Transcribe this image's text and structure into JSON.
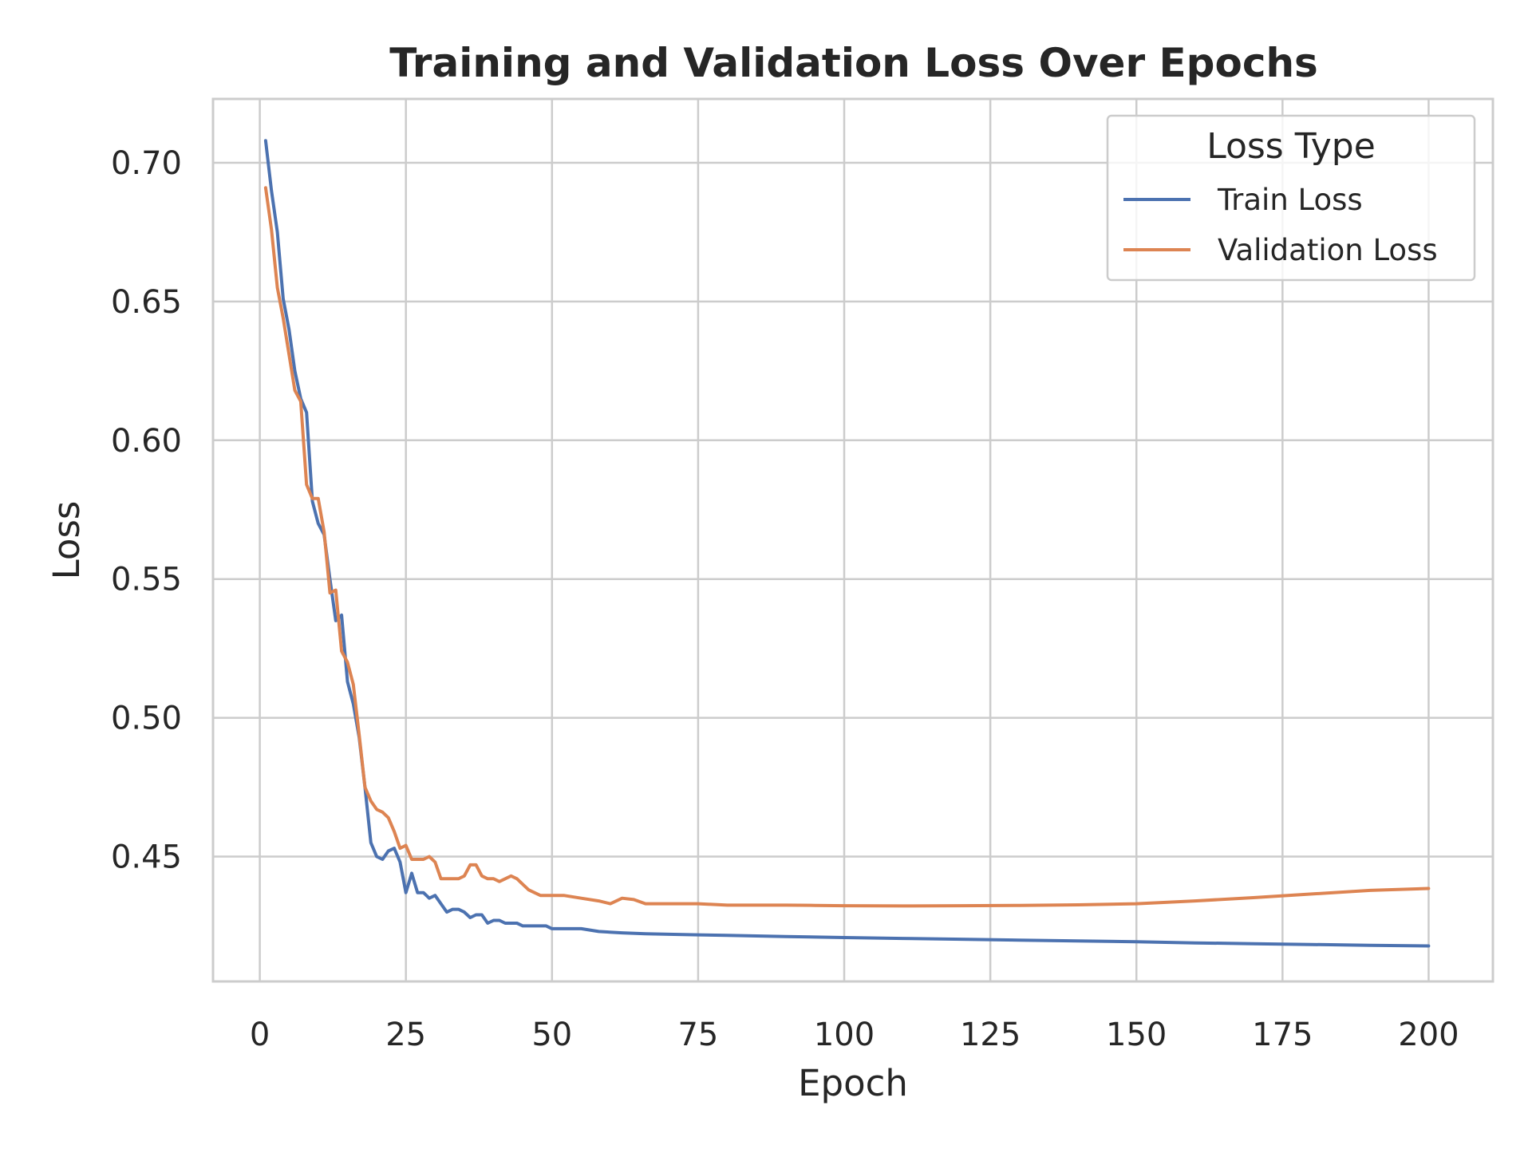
{
  "chart_data": {
    "type": "line",
    "title": "Training and Validation Loss Over Epochs",
    "xlabel": "Epoch",
    "ylabel": "Loss",
    "xlim": [
      -8,
      211
    ],
    "ylim": [
      0.405,
      0.723
    ],
    "xticks": [
      0,
      25,
      50,
      75,
      100,
      125,
      150,
      175,
      200
    ],
    "xtick_labels": [
      "0",
      "25",
      "50",
      "75",
      "100",
      "125",
      "150",
      "175",
      "200"
    ],
    "yticks": [
      0.45,
      0.5,
      0.55,
      0.6,
      0.65,
      0.7
    ],
    "ytick_labels": [
      "0.45",
      "0.50",
      "0.55",
      "0.60",
      "0.65",
      "0.70"
    ],
    "grid": true,
    "legend": {
      "title": "Loss Type",
      "placement": "top-right"
    },
    "series": [
      {
        "name": "Train Loss",
        "color": "#4C72B0",
        "x": [
          1,
          2,
          3,
          4,
          5,
          6,
          7,
          8,
          9,
          10,
          11,
          12,
          13,
          14,
          15,
          16,
          17,
          18,
          19,
          20,
          21,
          22,
          23,
          24,
          25,
          26,
          27,
          28,
          29,
          30,
          31,
          32,
          33,
          34,
          35,
          36,
          37,
          38,
          39,
          40,
          41,
          42,
          43,
          44,
          45,
          46,
          47,
          48,
          49,
          50,
          52,
          55,
          58,
          62,
          66,
          70,
          75,
          80,
          90,
          100,
          110,
          120,
          130,
          140,
          150,
          160,
          170,
          180,
          190,
          200
        ],
        "values": [
          0.708,
          0.69,
          0.675,
          0.651,
          0.64,
          0.625,
          0.615,
          0.61,
          0.578,
          0.57,
          0.566,
          0.55,
          0.535,
          0.537,
          0.513,
          0.505,
          0.493,
          0.475,
          0.455,
          0.45,
          0.449,
          0.452,
          0.453,
          0.448,
          0.437,
          0.444,
          0.437,
          0.437,
          0.435,
          0.436,
          0.433,
          0.43,
          0.431,
          0.431,
          0.43,
          0.428,
          0.429,
          0.429,
          0.426,
          0.427,
          0.427,
          0.426,
          0.426,
          0.426,
          0.425,
          0.425,
          0.425,
          0.425,
          0.425,
          0.424,
          0.424,
          0.424,
          0.423,
          0.4225,
          0.4222,
          0.422,
          0.4218,
          0.4216,
          0.4212,
          0.4208,
          0.4205,
          0.4202,
          0.4199,
          0.4196,
          0.4193,
          0.4189,
          0.4186,
          0.4183,
          0.418,
          0.4178
        ]
      },
      {
        "name": "Validation Loss",
        "color": "#DD8452",
        "x": [
          1,
          2,
          3,
          4,
          5,
          6,
          7,
          8,
          9,
          10,
          11,
          12,
          13,
          14,
          15,
          16,
          17,
          18,
          19,
          20,
          21,
          22,
          23,
          24,
          25,
          26,
          27,
          28,
          29,
          30,
          31,
          32,
          33,
          34,
          35,
          36,
          37,
          38,
          39,
          40,
          41,
          42,
          43,
          44,
          45,
          46,
          47,
          48,
          49,
          50,
          52,
          55,
          58,
          60,
          62,
          64,
          66,
          70,
          75,
          80,
          85,
          90,
          95,
          100,
          110,
          120,
          130,
          140,
          150,
          160,
          170,
          180,
          190,
          200
        ],
        "values": [
          0.691,
          0.676,
          0.655,
          0.644,
          0.631,
          0.618,
          0.614,
          0.584,
          0.579,
          0.579,
          0.567,
          0.545,
          0.546,
          0.524,
          0.52,
          0.512,
          0.494,
          0.475,
          0.47,
          0.467,
          0.466,
          0.464,
          0.459,
          0.453,
          0.454,
          0.449,
          0.449,
          0.449,
          0.45,
          0.448,
          0.442,
          0.442,
          0.442,
          0.442,
          0.443,
          0.447,
          0.447,
          0.443,
          0.442,
          0.442,
          0.441,
          0.442,
          0.443,
          0.442,
          0.44,
          0.438,
          0.437,
          0.436,
          0.436,
          0.436,
          0.436,
          0.435,
          0.434,
          0.433,
          0.435,
          0.4345,
          0.433,
          0.433,
          0.433,
          0.4325,
          0.4325,
          0.4325,
          0.4324,
          0.4323,
          0.4322,
          0.4323,
          0.4324,
          0.4326,
          0.433,
          0.434,
          0.4352,
          0.4365,
          0.4378,
          0.4385
        ]
      }
    ]
  }
}
